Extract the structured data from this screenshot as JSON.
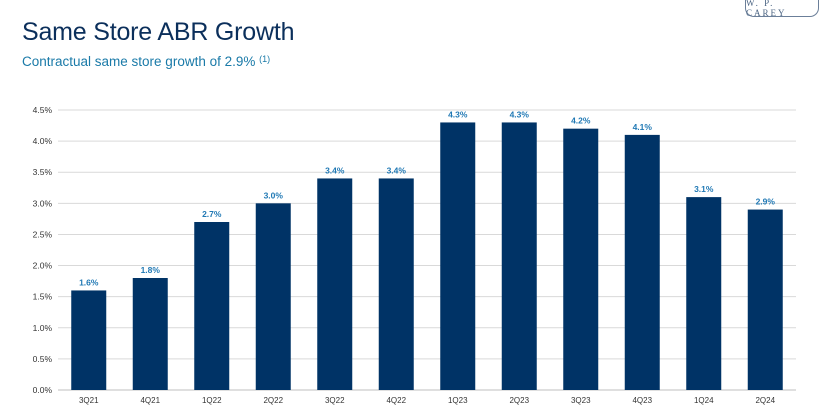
{
  "header": {
    "title": "Same Store ABR Growth",
    "subtitle": "Contractual same store growth of 2.9%",
    "subtitle_footnote": "(1)",
    "logo_text": "W. P. CAREY"
  },
  "colors": {
    "bar": "#003366",
    "data_label": "#1f78b4",
    "title": "#0b2f5b",
    "subtitle": "#1a7aa8",
    "grid": "#d9d9d9"
  },
  "chart_data": {
    "type": "bar",
    "categories": [
      "3Q21",
      "4Q21",
      "1Q22",
      "2Q22",
      "3Q22",
      "4Q22",
      "1Q23",
      "2Q23",
      "3Q23",
      "4Q23",
      "1Q24",
      "2Q24"
    ],
    "values": [
      1.6,
      1.8,
      2.7,
      3.0,
      3.4,
      3.4,
      4.3,
      4.3,
      4.2,
      4.1,
      3.1,
      2.9
    ],
    "data_labels": [
      "1.6%",
      "1.8%",
      "2.7%",
      "3.0%",
      "3.4%",
      "3.4%",
      "4.3%",
      "4.3%",
      "4.2%",
      "4.1%",
      "3.1%",
      "2.9%"
    ],
    "yticks": [
      0,
      0.5,
      1.0,
      1.5,
      2.0,
      2.5,
      3.0,
      3.5,
      4.0,
      4.5
    ],
    "ytick_labels": [
      "0.0%",
      "0.5%",
      "1.0%",
      "1.5%",
      "2.0%",
      "2.5%",
      "3.0%",
      "3.5%",
      "4.0%",
      "4.5%"
    ],
    "ylim": [
      0,
      4.5
    ],
    "grid": true,
    "legend": "none"
  }
}
